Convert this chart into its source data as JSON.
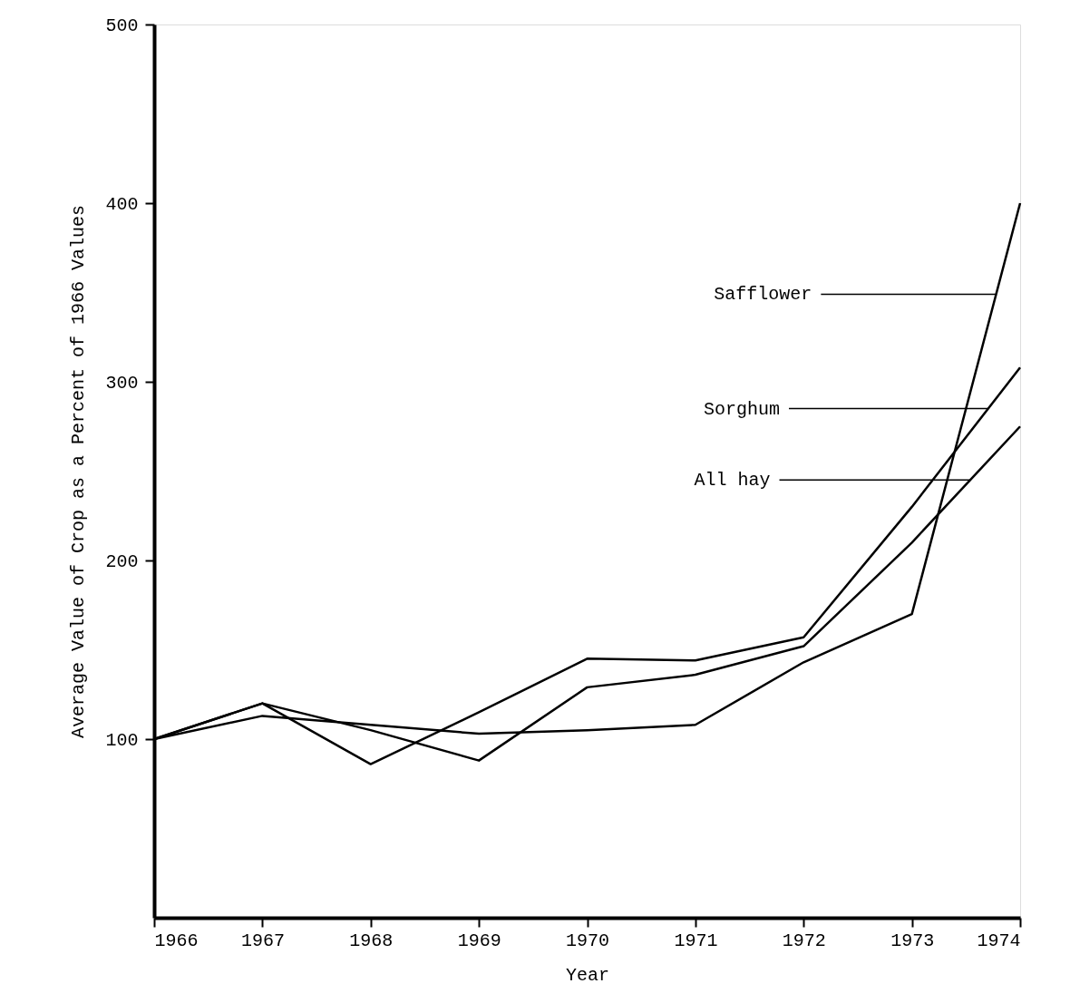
{
  "chart_data": {
    "type": "line",
    "xlabel": "Year",
    "ylabel": "Average Value of Crop as a Percent of 1966 Values",
    "x": [
      1966,
      1967,
      1968,
      1969,
      1970,
      1971,
      1972,
      1973,
      1974
    ],
    "series": [
      {
        "color": "#000000",
        "values": [
          100,
          113,
          108,
          103,
          105,
          108,
          143,
          170,
          400
        ]
      },
      {
        "color": "#000000",
        "values": [
          100,
          120,
          86,
          115,
          145,
          144,
          157,
          230,
          308
        ]
      },
      {
        "color": "#000000",
        "values": [
          100,
          120,
          105,
          88,
          129,
          136,
          152,
          210,
          275
        ]
      }
    ],
    "annotations": [
      {
        "text": "Safflower",
        "x": 1973.78,
        "y": 349
      },
      {
        "text": "Sorghum",
        "x": 1973.7,
        "y": 285
      },
      {
        "text": "All hay",
        "x": 1973.54,
        "y": 245
      }
    ],
    "xlim": [
      1966,
      1974
    ],
    "xticks": [
      1966,
      1967,
      1968,
      1969,
      1970,
      1971,
      1972,
      1973,
      1974
    ],
    "ylim": [
      0,
      500
    ],
    "yticks": [
      100,
      200,
      300,
      400,
      500
    ],
    "grid": false,
    "legend": false,
    "marker": "none",
    "line_style": "solid"
  }
}
